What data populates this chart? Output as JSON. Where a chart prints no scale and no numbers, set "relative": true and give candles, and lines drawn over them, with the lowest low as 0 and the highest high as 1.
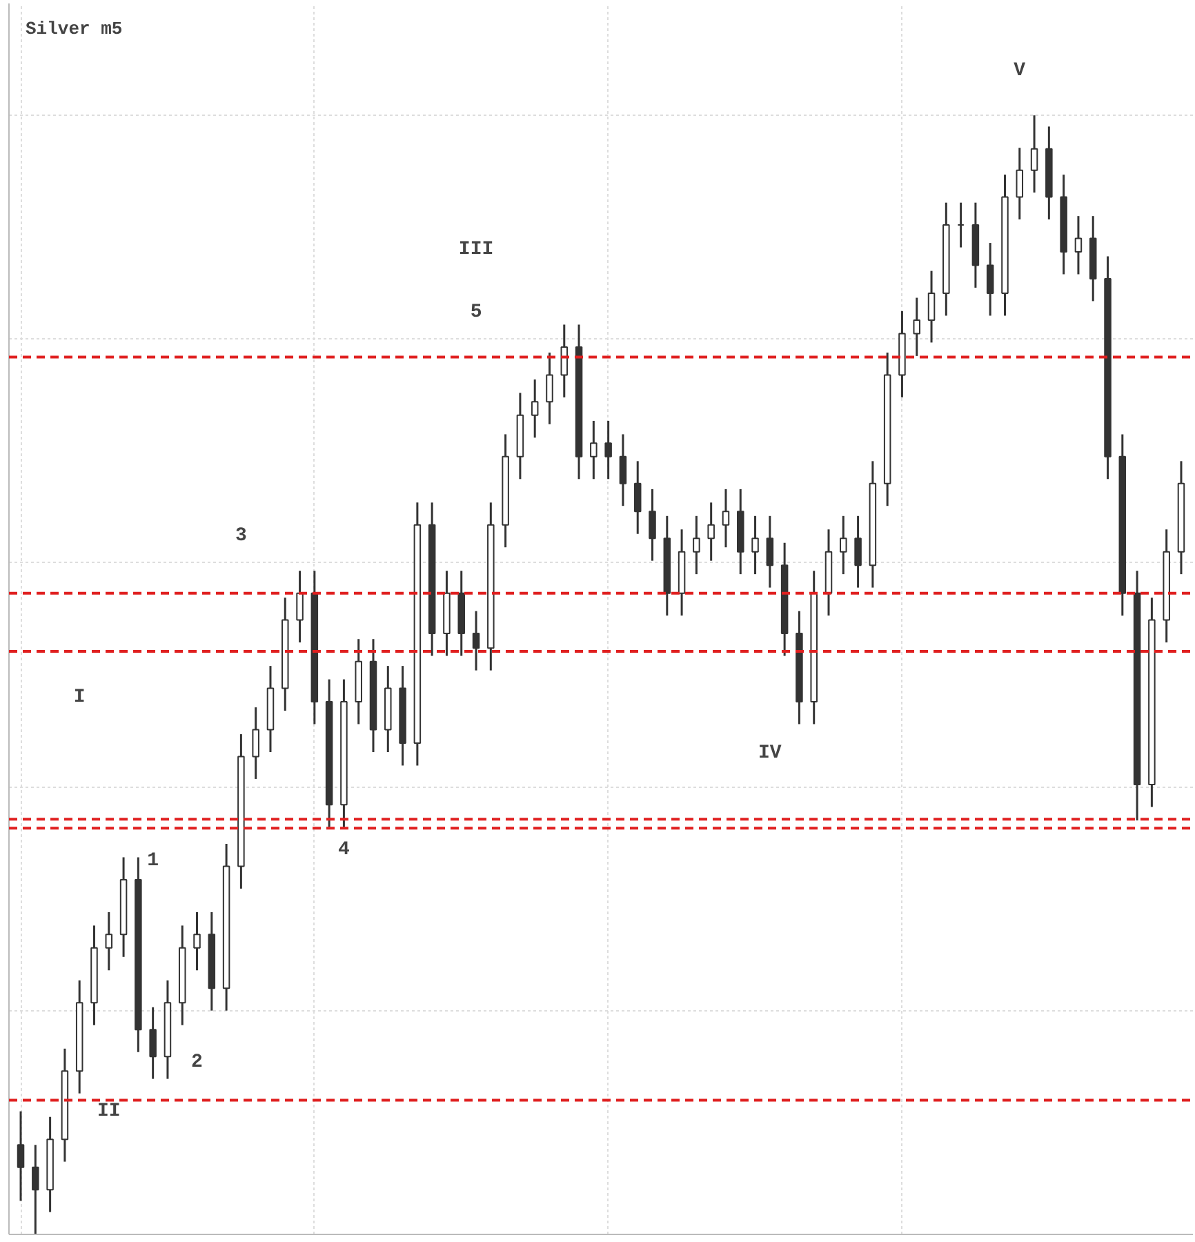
{
  "chart_data": {
    "type": "candlestick",
    "title": "Silver m5",
    "relative": true,
    "grid": true,
    "color": "#333333",
    "categories": [
      null,
      null,
      null,
      null,
      null,
      null,
      null,
      null,
      null,
      null,
      null,
      null,
      null,
      null,
      null,
      null,
      null,
      null,
      null,
      null,
      null,
      null,
      null,
      null,
      null,
      null,
      null,
      null,
      null,
      null,
      null,
      null,
      null,
      null,
      null,
      null,
      null,
      null,
      null,
      null,
      null,
      null,
      null,
      null,
      null,
      null,
      null,
      null,
      null,
      null,
      null,
      null,
      null,
      null,
      null,
      null,
      null,
      null,
      null,
      null,
      null,
      null,
      null,
      null,
      null,
      null,
      null,
      null,
      null,
      null,
      null,
      null,
      null,
      null,
      null,
      null,
      null,
      null,
      null,
      null
    ],
    "ohlc": [
      [
        0.08,
        0.11,
        0.03,
        0.06
      ],
      [
        0.06,
        0.08,
        0.0,
        0.04
      ],
      [
        0.04,
        0.105,
        0.02,
        0.085
      ],
      [
        0.085,
        0.166,
        0.065,
        0.146
      ],
      [
        0.146,
        0.227,
        0.126,
        0.207
      ],
      [
        0.207,
        0.276,
        0.187,
        0.256
      ],
      [
        0.256,
        0.288,
        0.236,
        0.268
      ],
      [
        0.268,
        0.337,
        0.248,
        0.317
      ],
      [
        0.317,
        0.337,
        0.163,
        0.183
      ],
      [
        0.183,
        0.203,
        0.139,
        0.159
      ],
      [
        0.159,
        0.227,
        0.139,
        0.207
      ],
      [
        0.207,
        0.276,
        0.187,
        0.256
      ],
      [
        0.256,
        0.288,
        0.236,
        0.268
      ],
      [
        0.268,
        0.288,
        0.2,
        0.22
      ],
      [
        0.22,
        0.349,
        0.2,
        0.329
      ],
      [
        0.329,
        0.447,
        0.309,
        0.427
      ],
      [
        0.427,
        0.471,
        0.407,
        0.451
      ],
      [
        0.451,
        0.508,
        0.431,
        0.488
      ],
      [
        0.488,
        0.569,
        0.468,
        0.549
      ],
      [
        0.549,
        0.593,
        0.529,
        0.573
      ],
      [
        0.573,
        0.593,
        0.456,
        0.476
      ],
      [
        0.476,
        0.496,
        0.364,
        0.384
      ],
      [
        0.384,
        0.496,
        0.364,
        0.476
      ],
      [
        0.476,
        0.532,
        0.456,
        0.512
      ],
      [
        0.512,
        0.532,
        0.431,
        0.451
      ],
      [
        0.451,
        0.508,
        0.431,
        0.488
      ],
      [
        0.488,
        0.508,
        0.419,
        0.439
      ],
      [
        0.439,
        0.654,
        0.419,
        0.634
      ],
      [
        0.634,
        0.654,
        0.517,
        0.537
      ],
      [
        0.537,
        0.593,
        0.517,
        0.573
      ],
      [
        0.573,
        0.593,
        0.517,
        0.537
      ],
      [
        0.537,
        0.557,
        0.504,
        0.524
      ],
      [
        0.524,
        0.654,
        0.504,
        0.634
      ],
      [
        0.634,
        0.715,
        0.614,
        0.695
      ],
      [
        0.695,
        0.752,
        0.675,
        0.732
      ],
      [
        0.732,
        0.764,
        0.712,
        0.744
      ],
      [
        0.744,
        0.788,
        0.724,
        0.768
      ],
      [
        0.768,
        0.813,
        0.748,
        0.793
      ],
      [
        0.793,
        0.813,
        0.675,
        0.695
      ],
      [
        0.695,
        0.727,
        0.675,
        0.707
      ],
      [
        0.707,
        0.727,
        0.675,
        0.695
      ],
      [
        0.695,
        0.715,
        0.651,
        0.671
      ],
      [
        0.671,
        0.691,
        0.626,
        0.646
      ],
      [
        0.646,
        0.666,
        0.602,
        0.622
      ],
      [
        0.622,
        0.642,
        0.553,
        0.573
      ],
      [
        0.573,
        0.63,
        0.553,
        0.61
      ],
      [
        0.61,
        0.642,
        0.59,
        0.622
      ],
      [
        0.622,
        0.654,
        0.602,
        0.634
      ],
      [
        0.634,
        0.666,
        0.614,
        0.646
      ],
      [
        0.646,
        0.666,
        0.59,
        0.61
      ],
      [
        0.61,
        0.642,
        0.59,
        0.622
      ],
      [
        0.622,
        0.642,
        0.578,
        0.598
      ],
      [
        0.598,
        0.618,
        0.517,
        0.537
      ],
      [
        0.537,
        0.557,
        0.456,
        0.476
      ],
      [
        0.476,
        0.593,
        0.456,
        0.573
      ],
      [
        0.573,
        0.63,
        0.553,
        0.61
      ],
      [
        0.61,
        0.642,
        0.59,
        0.622
      ],
      [
        0.622,
        0.642,
        0.578,
        0.598
      ],
      [
        0.598,
        0.691,
        0.578,
        0.671
      ],
      [
        0.671,
        0.788,
        0.651,
        0.768
      ],
      [
        0.768,
        0.825,
        0.748,
        0.805
      ],
      [
        0.805,
        0.837,
        0.785,
        0.817
      ],
      [
        0.817,
        0.861,
        0.797,
        0.841
      ],
      [
        0.841,
        0.922,
        0.821,
        0.902
      ],
      [
        0.902,
        0.922,
        0.882,
        0.902
      ],
      [
        0.902,
        0.922,
        0.846,
        0.866
      ],
      [
        0.866,
        0.886,
        0.821,
        0.841
      ],
      [
        0.841,
        0.947,
        0.821,
        0.927
      ],
      [
        0.927,
        0.971,
        0.907,
        0.951
      ],
      [
        0.951,
        1.0,
        0.931,
        0.97
      ],
      [
        0.97,
        0.99,
        0.907,
        0.927
      ],
      [
        0.927,
        0.947,
        0.858,
        0.878
      ],
      [
        0.878,
        0.91,
        0.858,
        0.89
      ],
      [
        0.89,
        0.91,
        0.834,
        0.854
      ],
      [
        0.854,
        0.874,
        0.675,
        0.695
      ],
      [
        0.695,
        0.715,
        0.553,
        0.573
      ],
      [
        0.573,
        0.593,
        0.37,
        0.402
      ],
      [
        0.402,
        0.569,
        0.382,
        0.549
      ],
      [
        0.549,
        0.63,
        0.529,
        0.61
      ],
      [
        0.61,
        0.691,
        0.59,
        0.671
      ]
    ],
    "annotations": [
      "I",
      "II",
      "III",
      "IV",
      "V",
      "1",
      "2",
      "3",
      "4",
      "5"
    ],
    "ref_lines": [
      {
        "axis": "y",
        "value": 0.12,
        "color": "#e02020",
        "line_style": "dashed"
      },
      {
        "axis": "y",
        "value": 0.363,
        "color": "#e02020",
        "line_style": "dashed"
      },
      {
        "axis": "y",
        "value": 0.371,
        "color": "#e02020",
        "line_style": "dashed"
      },
      {
        "axis": "y",
        "value": 0.521,
        "color": "#e02020",
        "line_style": "dashed"
      },
      {
        "axis": "y",
        "value": 0.573,
        "color": "#e02020",
        "line_style": "dashed"
      },
      {
        "axis": "y",
        "value": 0.784,
        "color": "#e02020",
        "line_style": "dashed"
      }
    ]
  }
}
